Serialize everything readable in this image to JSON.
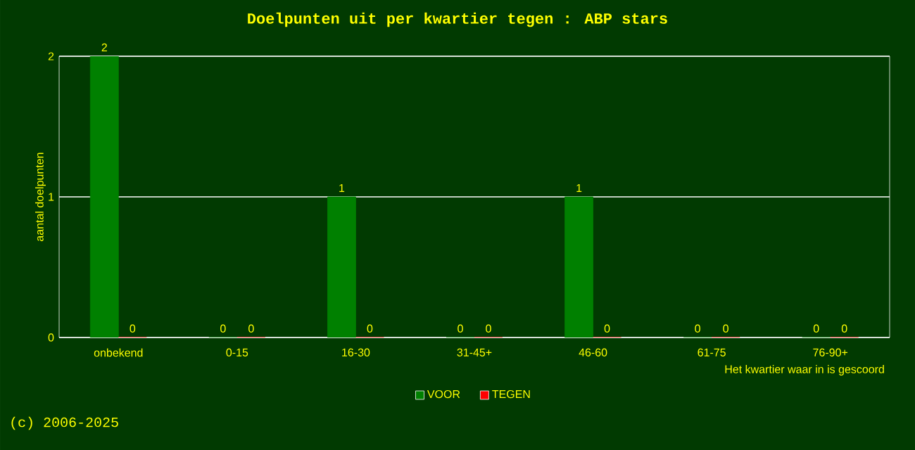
{
  "chart_data": {
    "type": "bar",
    "title": "Doelpunten uit per kwartier tegen : ABP stars",
    "xlabel": "Het kwartier waar in is gescoord",
    "ylabel": "aantal doelpunten",
    "categories": [
      "onbekend",
      "0-15",
      "16-30",
      "31-45+",
      "46-60",
      "61-75",
      "76-90+"
    ],
    "series": [
      {
        "name": "VOOR",
        "color": "#008000",
        "values": [
          2,
          0,
          1,
          0,
          1,
          0,
          0
        ]
      },
      {
        "name": "TEGEN",
        "color": "#ff0000",
        "values": [
          0,
          0,
          0,
          0,
          0,
          0,
          0
        ]
      }
    ],
    "ylim": [
      0,
      2
    ],
    "yticks": [
      0,
      1,
      2
    ],
    "grid": "y",
    "legend": "bottom",
    "data_labels": true,
    "annotations": [
      "(c) 2006-2025"
    ]
  }
}
